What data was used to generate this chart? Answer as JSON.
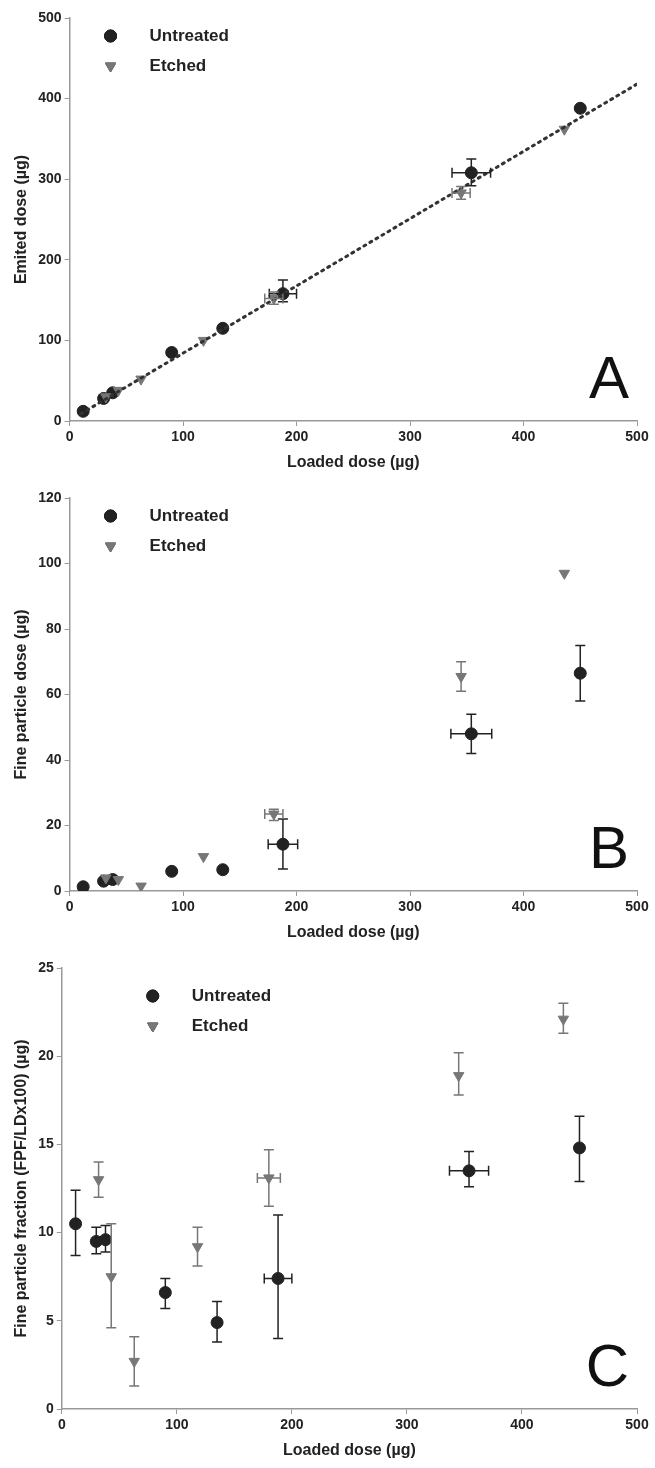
{
  "chart_data": [
    {
      "type": "scatter",
      "xlabel": "Loaded dose (µg)",
      "ylabel": "Emited dose (µg)",
      "xlim": [
        0,
        500
      ],
      "ylim": [
        0,
        500
      ],
      "xticks": [
        0,
        100,
        200,
        300,
        400,
        500
      ],
      "yticks": [
        0,
        100,
        200,
        300,
        400,
        500
      ],
      "grid": false,
      "legend": "top left",
      "annotations": [
        "A"
      ],
      "series": [
        {
          "name": "Untreated",
          "color": "#222222",
          "marker": "circle",
          "x": [
            12,
            30,
            38,
            90,
            135,
            188,
            354,
            450
          ],
          "values": [
            12,
            28,
            35,
            85,
            115,
            158,
            308,
            388
          ],
          "errors": [
            null,
            null,
            null,
            null,
            null,
            [
              148,
              175
            ],
            [
              292,
              325
            ],
            null
          ],
          "xerrors": [
            null,
            null,
            null,
            null,
            null,
            12,
            17,
            null
          ]
        },
        {
          "name": "Etched",
          "color": "#777777",
          "marker": "triangle",
          "x": [
            32,
            43,
            63,
            118,
            180,
            345,
            436
          ],
          "values": [
            30,
            38,
            52,
            100,
            152,
            283,
            362
          ],
          "errors": [
            null,
            null,
            null,
            null,
            [
              145,
              160
            ],
            [
              275,
              291
            ],
            null
          ],
          "xerrors": [
            null,
            null,
            null,
            null,
            8,
            8,
            null
          ]
        },
        {
          "type": "line",
          "color": "#333333",
          "marker": "none",
          "line_style": "dotted",
          "x": [
            10,
            500
          ],
          "values": [
            9,
            418
          ]
        }
      ]
    },
    {
      "type": "scatter",
      "xlabel": "Loaded dose (µg)",
      "ylabel": "Fine particle dose (µg)",
      "xlim": [
        0,
        500
      ],
      "ylim": [
        0,
        120
      ],
      "xticks": [
        0,
        100,
        200,
        300,
        400,
        500
      ],
      "yticks": [
        0,
        20,
        40,
        60,
        80,
        100,
        120
      ],
      "grid": false,
      "legend": "top left",
      "annotations": [
        "B"
      ],
      "series": [
        {
          "name": "Untreated",
          "color": "#222222",
          "marker": "circle",
          "x": [
            12,
            30,
            38,
            90,
            135,
            188,
            354,
            450
          ],
          "values": [
            1.3,
            3,
            3.5,
            6,
            6.5,
            14.3,
            48,
            66.5
          ],
          "errors": [
            null,
            null,
            null,
            null,
            null,
            [
              6.7,
              22
            ],
            [
              42,
              54
            ],
            [
              58,
              75
            ]
          ],
          "xerrors": [
            null,
            null,
            null,
            null,
            null,
            13,
            18,
            null
          ]
        },
        {
          "name": "Etched",
          "color": "#777777",
          "marker": "triangle",
          "x": [
            32,
            43,
            63,
            118,
            180,
            345,
            436
          ],
          "values": [
            4,
            3.5,
            1.5,
            10.5,
            23.5,
            65.5,
            97
          ],
          "errors": [
            null,
            null,
            null,
            null,
            [
              21.5,
              25
            ],
            [
              61,
              70
            ],
            null
          ],
          "xerrors": [
            null,
            null,
            null,
            null,
            8,
            null,
            null
          ]
        }
      ]
    },
    {
      "type": "scatter",
      "xlabel": "Loaded dose (µg)",
      "ylabel": "Fine particle fraction (FPF/LDx100) (µg)",
      "xlim": [
        0,
        500
      ],
      "ylim": [
        0,
        25
      ],
      "xticks": [
        0,
        100,
        200,
        300,
        400,
        500
      ],
      "yticks": [
        0,
        5,
        10,
        15,
        20,
        25
      ],
      "grid": false,
      "legend": "top left",
      "annotations": [
        "C"
      ],
      "series": [
        {
          "name": "Untreated",
          "color": "#222222",
          "marker": "circle",
          "x": [
            12,
            30,
            38,
            90,
            135,
            188,
            354,
            450
          ],
          "values": [
            10.5,
            9.5,
            9.6,
            6.6,
            4.9,
            7.4,
            13.5,
            14.8
          ],
          "errors": [
            [
              8.7,
              12.4
            ],
            [
              8.8,
              10.3
            ],
            [
              8.9,
              10.4
            ],
            [
              5.7,
              7.4
            ],
            [
              3.8,
              6.1
            ],
            [
              4.0,
              11.0
            ],
            [
              12.6,
              14.6
            ],
            [
              12.9,
              16.6
            ]
          ],
          "xerrors": [
            null,
            null,
            null,
            null,
            null,
            12,
            17,
            null
          ]
        },
        {
          "name": "Etched",
          "color": "#777777",
          "marker": "triangle",
          "x": [
            32,
            43,
            63,
            118,
            180,
            345,
            436
          ],
          "values": [
            13.0,
            7.5,
            2.7,
            9.2,
            13.1,
            18.9,
            22.1
          ],
          "errors": [
            [
              12.0,
              14.0
            ],
            [
              4.6,
              10.5
            ],
            [
              1.3,
              4.1
            ],
            [
              8.1,
              10.3
            ],
            [
              11.5,
              14.7
            ],
            [
              17.8,
              20.2
            ],
            [
              21.3,
              23.0
            ]
          ],
          "xerrors": [
            null,
            null,
            null,
            null,
            10,
            null,
            null
          ]
        }
      ]
    }
  ]
}
